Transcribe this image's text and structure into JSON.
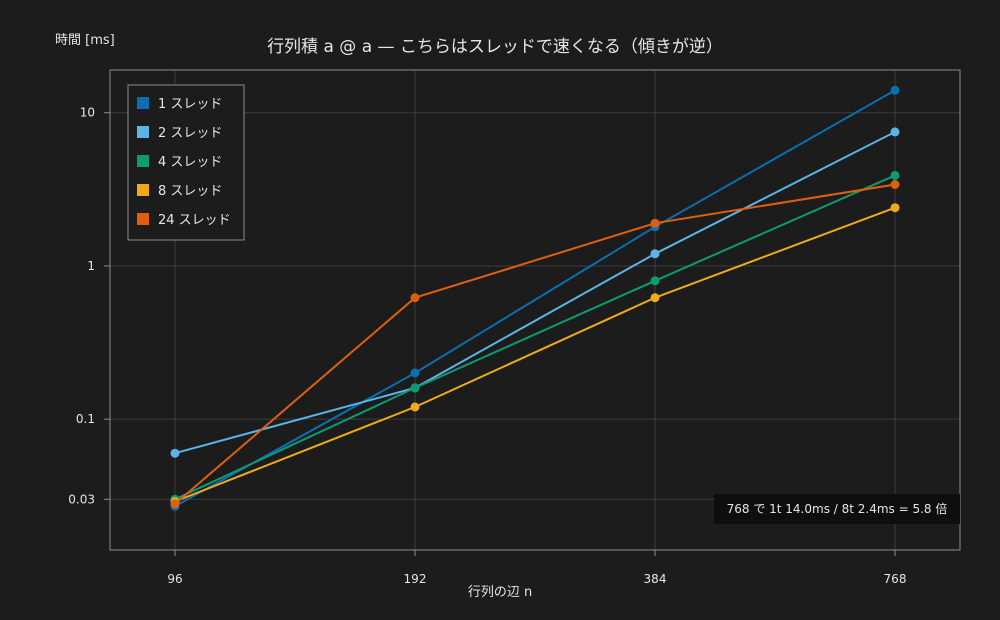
{
  "chart_data": {
    "type": "line",
    "title": "行列積 a @ a — こちらはスレッドで速くなる（傾きが逆）",
    "xlabel": "行列の辺 n",
    "ylabel": "時間 [ms]",
    "x": [
      96,
      192,
      384,
      768
    ],
    "x_tick_labels": [
      "96",
      "192",
      "384",
      "768"
    ],
    "y_scale": "log",
    "ylim": [
      0.014,
      19
    ],
    "y_ticks": [
      0.03,
      0.1,
      1,
      10
    ],
    "y_tick_labels": [
      "0.03",
      "0.1",
      "1",
      "10"
    ],
    "grid": true,
    "legend_position": "top-left",
    "series": [
      {
        "name": "1 スレッド",
        "color": "#0a6fb0",
        "values": [
          0.027,
          0.2,
          1.8,
          14.0
        ]
      },
      {
        "name": "2 スレッド",
        "color": "#5ab4ea",
        "values": [
          0.06,
          0.16,
          1.2,
          7.5
        ]
      },
      {
        "name": "4 スレッド",
        "color": "#0d9b72",
        "values": [
          0.03,
          0.16,
          0.8,
          3.9
        ]
      },
      {
        "name": "8 スレッド",
        "color": "#eeaa1a",
        "values": [
          0.029,
          0.12,
          0.62,
          2.4
        ]
      },
      {
        "name": "24 スレッド",
        "color": "#dd6010",
        "values": [
          0.028,
          0.62,
          1.9,
          3.4
        ]
      }
    ],
    "annotation": "768 で 1t 14.0ms / 8t 2.4ms = 5.8 倍"
  },
  "style": {
    "background": "#1c1c1c",
    "grid_color": "#3c3c3c",
    "axis_color": "#8c8c8c",
    "text_color": "#e6e6e6"
  }
}
